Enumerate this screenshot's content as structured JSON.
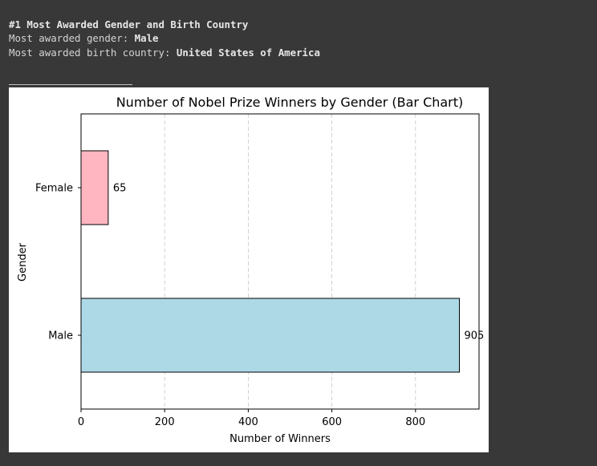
{
  "output": {
    "heading": "#1 Most Awarded Gender and Birth Country",
    "gender_label": "Most awarded gender: ",
    "gender_value": "Male",
    "country_label": "Most awarded birth country: ",
    "country_value": "United States of America"
  },
  "chart_data": {
    "type": "bar",
    "orientation": "horizontal",
    "title": "Number of Nobel Prize Winners by Gender (Bar Chart)",
    "xlabel": "Number of Winners",
    "ylabel": "Gender",
    "categories": [
      "Male",
      "Female"
    ],
    "values": [
      905,
      65
    ],
    "colors": [
      "#add8e6",
      "#ffb6c1"
    ],
    "xlim": [
      0,
      952
    ],
    "xticks": [
      0,
      200,
      400,
      600,
      800
    ],
    "grid": "x-dashed"
  }
}
